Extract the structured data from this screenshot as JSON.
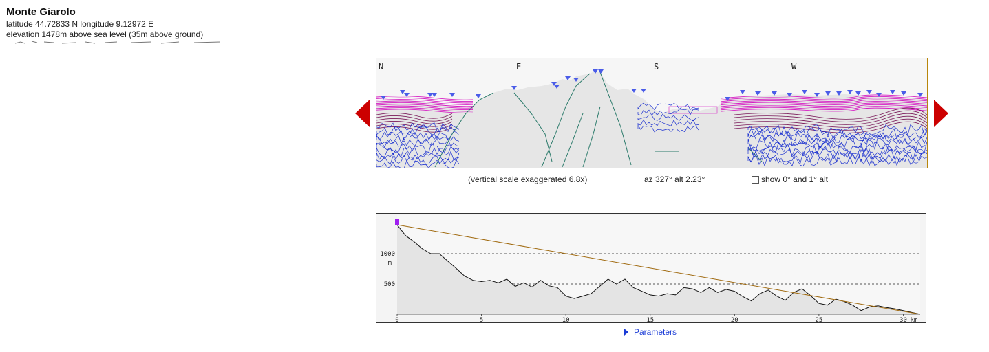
{
  "location": {
    "name": "Monte Giarolo",
    "coords": "latitude 44.72833 N longitude 9.12972 E",
    "elevation": "elevation 1478m above sea level (35m above ground)"
  },
  "panorama": {
    "compass": [
      "N",
      "E",
      "S",
      "W"
    ],
    "vertical_scale_note": "(vertical scale exaggerated 6.8x)",
    "azimuth_note": "az 327° alt 2.23°",
    "show_alt_label": "show 0° and 1° alt",
    "show_alt_checked": false,
    "colors": {
      "near_ridge": "#2a7a6a",
      "mid_ridge": "#1a2fd0",
      "far_ridge": "#d61fc4",
      "sky_band": "#7a1a5a",
      "terrain_fill": "#e6e6e6",
      "marker": "#4a5ce8",
      "nav_arrow": "#cc0000"
    }
  },
  "profile": {
    "y_ticks": [
      "1000",
      "500"
    ],
    "y_unit": "m",
    "x_ticks": [
      "0",
      "5",
      "10",
      "15",
      "20",
      "25",
      "30"
    ],
    "x_unit": "km",
    "line_color": "#a06a10",
    "profile_color": "#111111"
  },
  "params_label": "Parameters"
}
